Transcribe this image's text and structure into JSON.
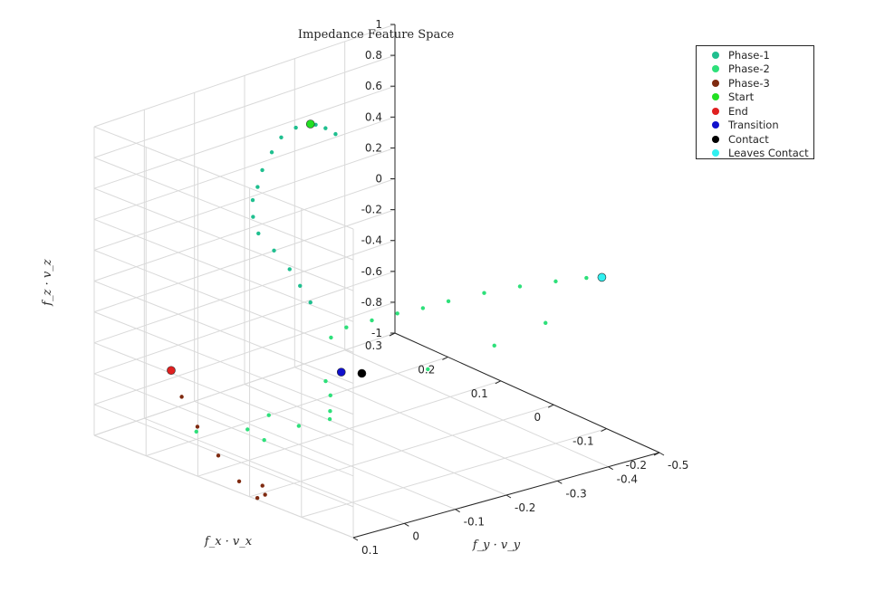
{
  "chart_data": {
    "type": "scatter",
    "title": "Impedance Feature Space",
    "xlabel": "f_x · v_x",
    "ylabel": "f_y · v_y",
    "zlabel": "f_z · v_z",
    "xlim": [
      -0.2,
      0.3
    ],
    "ylim": [
      -0.5,
      0.1
    ],
    "zlim": [
      -1,
      1
    ],
    "grid": true,
    "legend_position": "top-right",
    "x_ticks": [
      "0.3",
      "0.2",
      "0.1",
      "0",
      "-0.1",
      "-0.2"
    ],
    "y_ticks": [
      "0.1",
      "0",
      "-0.1",
      "-0.2",
      "-0.3",
      "-0.4",
      "-0.5"
    ],
    "z_ticks": [
      "1",
      "0.8",
      "0.6",
      "0.4",
      "0.2",
      "0",
      "-0.2",
      "-0.4",
      "-0.6",
      "-0.8",
      "-1"
    ],
    "series": [
      {
        "name": "Phase-1",
        "color": "#1fbf8f",
        "points": [
          [
            0.27,
            -0.35,
            0.5
          ],
          [
            0.27,
            -0.33,
            0.56
          ],
          [
            0.26,
            -0.3,
            0.63
          ],
          [
            0.25,
            -0.25,
            0.68
          ],
          [
            0.23,
            -0.2,
            0.7
          ],
          [
            0.2,
            -0.15,
            0.7
          ],
          [
            0.17,
            -0.1,
            0.68
          ],
          [
            0.15,
            -0.07,
            0.63
          ],
          [
            0.14,
            -0.05,
            0.58
          ],
          [
            0.12,
            -0.03,
            0.52
          ],
          [
            0.1,
            -0.02,
            0.45
          ],
          [
            0.07,
            -0.02,
            0.38
          ],
          [
            0.04,
            -0.02,
            0.3
          ],
          [
            0.02,
            -0.02,
            0.22
          ],
          [
            0,
            -0.02,
            0.14
          ]
        ]
      },
      {
        "name": "Phase-2",
        "color": "#2ee07a",
        "points": [
          [
            -0.02,
            -0.04,
            -0.08
          ],
          [
            -0.03,
            -0.06,
            -0.02
          ],
          [
            -0.04,
            -0.1,
            0.0
          ],
          [
            -0.05,
            -0.14,
            0.02
          ],
          [
            -0.06,
            -0.18,
            0.03
          ],
          [
            -0.07,
            -0.22,
            0.05
          ],
          [
            -0.08,
            -0.28,
            0.06
          ],
          [
            -0.09,
            -0.34,
            0.06
          ],
          [
            -0.1,
            -0.4,
            0.05
          ],
          [
            -0.11,
            -0.45,
            0.04
          ],
          [
            0.0,
            -0.05,
            -0.4
          ],
          [
            0.02,
            -0.08,
            -0.55
          ],
          [
            0.04,
            -0.1,
            -0.7
          ],
          [
            0.06,
            -0.12,
            -0.8
          ],
          [
            0.1,
            -0.1,
            -0.88
          ],
          [
            0.15,
            -0.05,
            -0.92
          ],
          [
            0.2,
            0.0,
            -0.95
          ],
          [
            -0.05,
            -0.2,
            -0.4
          ],
          [
            -0.08,
            -0.3,
            -0.3
          ],
          [
            -0.1,
            -0.38,
            -0.2
          ],
          [
            0.08,
            -0.02,
            -0.7
          ],
          [
            0.05,
            0.02,
            -0.78
          ]
        ]
      },
      {
        "name": "Phase-3",
        "color": "#7f2a10",
        "points": [
          [
            0.2,
            0.05,
            -0.5
          ],
          [
            0.17,
            0.06,
            -0.62
          ],
          [
            0.13,
            0.07,
            -0.75
          ],
          [
            0.08,
            0.08,
            -0.86
          ],
          [
            0.03,
            0.09,
            -0.95
          ],
          [
            -0.01,
            0.095,
            -1.0
          ],
          [
            -0.02,
            0.09,
            -0.97
          ],
          [
            -0.01,
            0.085,
            -0.93
          ]
        ]
      },
      {
        "name": "Start",
        "color": "#22e022",
        "points": [
          [
            0.27,
            -0.3,
            0.62
          ]
        ]
      },
      {
        "name": "End",
        "color": "#e02020",
        "points": [
          [
            0.2,
            0.05,
            -0.5
          ]
        ]
      },
      {
        "name": "Transition",
        "color": "#1010cc",
        "points": [
          [
            -0.03,
            -0.05,
            -0.3
          ]
        ]
      },
      {
        "name": "Contact",
        "color": "#000000",
        "points": [
          [
            -0.05,
            -0.07,
            -0.3
          ]
        ]
      },
      {
        "name": "Leaves Contact",
        "color": "#30f0f0",
        "points": [
          [
            -0.12,
            -0.47,
            0.04
          ]
        ]
      }
    ]
  }
}
